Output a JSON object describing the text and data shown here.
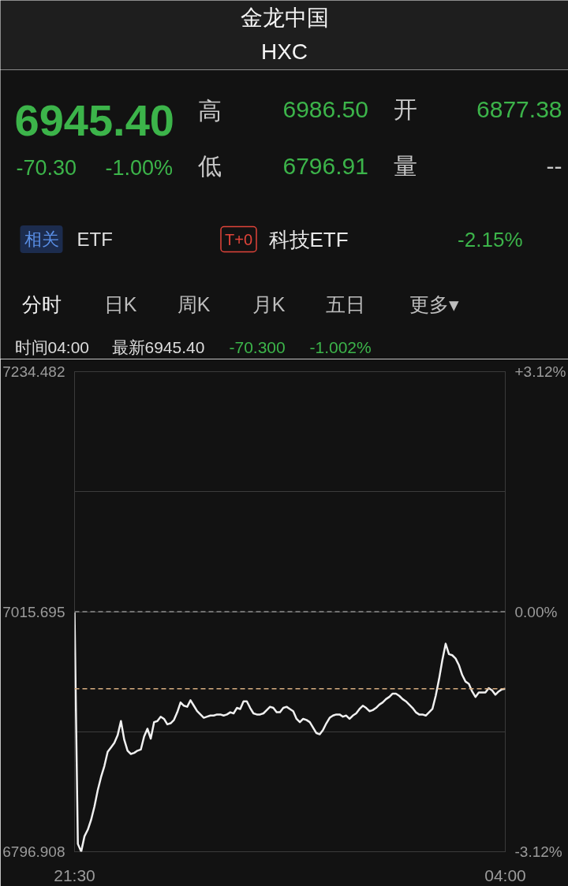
{
  "chart_data": {
    "type": "line",
    "title": "金龙中国",
    "subtitle": "HXC",
    "annotations": [
      "6945.40",
      "-70.30",
      "-1.00%",
      "高",
      "6986.50",
      "开",
      "6877.38",
      "低",
      "6796.91",
      "量",
      "--",
      "相关",
      "ETF",
      "T+0",
      "科技ETF",
      "-2.15%",
      "分时",
      "日K",
      "周K",
      "月K",
      "五日",
      "更多▾",
      "时间04:00",
      "最新6945.40",
      "-70.300",
      "-1.002%"
    ],
    "categories": [
      "21:30",
      null,
      null,
      null,
      null,
      null,
      null,
      null,
      null,
      null,
      null,
      null,
      null,
      null,
      null,
      null,
      null,
      null,
      null,
      null,
      null,
      null,
      null,
      null,
      null,
      null,
      null,
      null,
      null,
      null,
      null,
      null,
      null,
      null,
      null,
      null,
      null,
      null,
      null,
      null,
      null,
      null,
      null,
      null,
      null,
      null,
      null,
      null,
      null,
      null,
      null,
      null,
      null,
      null,
      null,
      null,
      null,
      null,
      null,
      null,
      null,
      null,
      null,
      null,
      null,
      null,
      null,
      null,
      null,
      null,
      null,
      null,
      null,
      null,
      null,
      null,
      null,
      null,
      null,
      null,
      null,
      null,
      null,
      null,
      null,
      null,
      null,
      null,
      null,
      null,
      null,
      null,
      null,
      null,
      null,
      null,
      null,
      null,
      null,
      null,
      null,
      null,
      null,
      null,
      null,
      null,
      null,
      null,
      null,
      null,
      null,
      null,
      null,
      null,
      null,
      null,
      null,
      null,
      null,
      null,
      null,
      null,
      null,
      null,
      null,
      null,
      null,
      null,
      null,
      null,
      "04:00"
    ],
    "series": [
      {
        "color": "#f0f0f0",
        "values": [
          7015,
          6804,
          6797,
          6811,
          6817,
          6826,
          6838,
          6853,
          6865,
          6875,
          6888,
          6892,
          6896,
          6903,
          6916,
          6899,
          6889,
          6886,
          6887,
          6889,
          6890,
          6902,
          6909,
          6900,
          6915,
          6916,
          6920,
          6918,
          6913,
          6914,
          6917,
          6924,
          6933,
          6930,
          6929,
          6935,
          6930,
          6925,
          6922,
          6919,
          6920,
          6921,
          6921,
          6922,
          6922,
          6921,
          6922,
          6924,
          6923,
          6928,
          6927,
          6934,
          6934,
          6928,
          6923,
          6922,
          6922,
          6923,
          6926,
          6929,
          6928,
          6924,
          6924,
          6928,
          6929,
          6927,
          6925,
          6918,
          6915,
          6918,
          6917,
          6915,
          6910,
          6905,
          6904,
          6908,
          6914,
          6919,
          6921,
          6922,
          6922,
          6920,
          6921,
          6918,
          6921,
          6923,
          6927,
          6930,
          6928,
          6925,
          6926,
          6928,
          6931,
          6933,
          6936,
          6938,
          6941,
          6941,
          6939,
          6936,
          6934,
          6931,
          6928,
          6924,
          6922,
          6922,
          6921,
          6924,
          6927,
          6939,
          6954,
          6971.5,
          6986.5,
          6977,
          6976,
          6973,
          6967,
          6958,
          6952,
          6950,
          6943,
          6938,
          6942,
          6942,
          6942,
          6946,
          6944,
          6940,
          6943,
          6945,
          6945.4
        ]
      }
    ],
    "ylim": [
      6796.908,
      7234.482
    ],
    "yticks": [
      7234.482,
      {
        "value": 7125.0885,
        "label": null
      },
      7015.695,
      {
        "value": 6906.3015,
        "label": null
      },
      6796.908
    ],
    "y2lim": [
      -3.12,
      3.12
    ],
    "y2ticks": [
      {
        "value": 3.12,
        "label": "+3.12%"
      },
      {
        "value": 0,
        "label": "0.00%"
      },
      {
        "value": -3.12,
        "label": "-3.12%"
      }
    ],
    "ref_lines": [
      {
        "axis": "y",
        "value": 7015.695,
        "color": "#8c8c8c",
        "line_style": "dashed"
      },
      {
        "axis": "y",
        "value": 6945.4,
        "color": "#d8ad80",
        "line_style": "dashed"
      }
    ],
    "grid": "y"
  }
}
